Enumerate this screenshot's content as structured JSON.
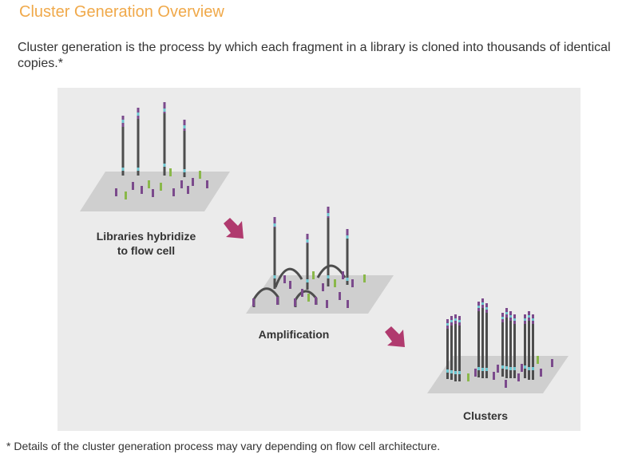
{
  "header": {
    "title": "Cluster Generation Overview",
    "intro": "Cluster generation is the process by which each fragment in a library is cloned into thousands of identical copies.*"
  },
  "diagram": {
    "steps": [
      {
        "label_line1": "Libraries hybridize",
        "label_line2": "to flow cell"
      },
      {
        "label": "Amplification"
      },
      {
        "label": "Clusters"
      }
    ],
    "colors": {
      "accent_title": "#f0a94a",
      "arrow": "#b03a6e",
      "strand": "#4d4d4d",
      "adapter_teal": "#6ec6d0",
      "adapter_purple": "#7b4a8c",
      "primer_green": "#8ab84a",
      "surface": "#cfcfcf",
      "panel": "#ebebeb"
    }
  },
  "footnote": "* Details of the cluster generation process may vary depending on flow cell architecture."
}
